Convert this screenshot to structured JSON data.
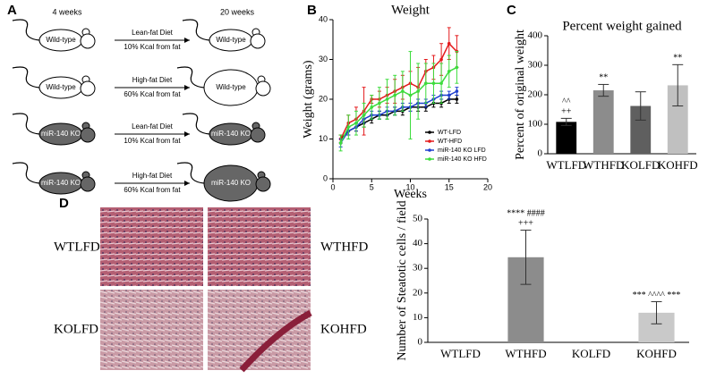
{
  "panels": {
    "a": "A",
    "b": "B",
    "c": "C",
    "d": "D"
  },
  "diagram": {
    "start_label": "4 weeks",
    "end_label": "20 weeks",
    "rows": [
      {
        "start": "Wild-type",
        "end": "Wild-type",
        "diet": "Lean-fat Diet",
        "kcal": "10% Kcal from fat"
      },
      {
        "start": "Wild-type",
        "end": "Wild-type",
        "diet": "High-fat Diet",
        "kcal": "60% Kcal from fat"
      },
      {
        "start": "miR-140 KO",
        "end": "miR-140 KO",
        "diet": "Lean-fat Diet",
        "kcal": "10% Kcal from fat"
      },
      {
        "start": "miR-140 KO",
        "end": "miR-140 KO",
        "diet": "High-fat Diet",
        "kcal": "60% Kcal from fat"
      }
    ]
  },
  "histology": {
    "labels": [
      "WTLFD",
      "WTHFD",
      "KOLFD",
      "KOHFD"
    ]
  },
  "chart_data": [
    {
      "type": "line",
      "title": "Weight",
      "x_label": "Weeks",
      "y_label": "Weight (grams)",
      "x": [
        1,
        2,
        3,
        4,
        5,
        6,
        7,
        8,
        9,
        10,
        11,
        12,
        13,
        14,
        15,
        16
      ],
      "xlim": [
        0,
        20
      ],
      "xticks": [
        0,
        5,
        10,
        15,
        20
      ],
      "ylim": [
        0,
        40
      ],
      "yticks": [
        0,
        10,
        20,
        30,
        40
      ],
      "legend": "lower right",
      "series": [
        {
          "name": "WT-LFD",
          "color": "#000000",
          "values": [
            10,
            12,
            13,
            14,
            15,
            16,
            16,
            17,
            17,
            18,
            18,
            18,
            19,
            19,
            20,
            20
          ],
          "errors": [
            1,
            1,
            1,
            1,
            1,
            1,
            1,
            1,
            1,
            1,
            1,
            1,
            1,
            1,
            1,
            1
          ]
        },
        {
          "name": "WT-HFD",
          "color": "#e41a1c",
          "values": [
            10,
            14,
            15,
            17,
            20,
            20,
            21,
            22,
            23,
            24,
            23,
            27,
            28,
            30,
            34,
            32
          ],
          "errors": [
            1,
            2,
            3,
            6,
            1,
            2,
            2,
            3,
            3,
            3,
            5,
            3,
            3,
            4,
            4,
            4
          ]
        },
        {
          "name": "miR-140 KO LFD",
          "color": "#1f3fcf",
          "values": [
            9,
            12,
            13,
            15,
            16,
            16,
            17,
            17,
            18,
            18,
            19,
            19,
            20,
            21,
            21,
            22
          ],
          "errors": [
            1,
            1,
            1,
            1,
            1,
            1,
            1,
            1,
            1,
            1,
            1,
            1,
            1,
            1,
            1,
            1
          ]
        },
        {
          "name": "miR-140 KO HFD",
          "color": "#3ddc3d",
          "values": [
            9,
            13,
            14,
            16,
            18,
            19,
            20,
            21,
            22,
            21,
            22,
            24,
            24,
            24,
            27,
            28
          ],
          "errors": [
            2,
            3,
            3,
            3,
            3,
            4,
            5,
            5,
            5,
            11,
            7,
            5,
            5,
            5,
            4,
            4
          ]
        }
      ]
    },
    {
      "type": "bar",
      "title": "Percent weight gained",
      "y_label": "Percent of original weight",
      "categories": [
        "WTLFD",
        "WTHFD",
        "KOLFD",
        "KOHFD"
      ],
      "values": [
        108,
        215,
        162,
        232
      ],
      "errors": [
        12,
        20,
        48,
        70
      ],
      "colors": [
        "#000000",
        "#8c8c8c",
        "#5f5f5f",
        "#c0c0c0"
      ],
      "annotations": [
        [
          "^^",
          "++"
        ],
        [
          "**"
        ],
        null,
        [
          "**"
        ]
      ],
      "ylim": [
        0,
        400
      ],
      "yticks": [
        0,
        100,
        200,
        300,
        400
      ]
    },
    {
      "type": "bar",
      "y_label": "Number of Steatotic cells / field",
      "categories": [
        "WTLFD",
        "WTHFD",
        "KOLFD",
        "KOHFD"
      ],
      "values": [
        0,
        34.5,
        0,
        12
      ],
      "errors": [
        0,
        11,
        0,
        4.5
      ],
      "colors": [
        "#000000",
        "#8c8c8c",
        "#5f5f5f",
        "#c9c9c9"
      ],
      "annotations": [
        null,
        [
          "**** ####",
          "+++"
        ],
        null,
        [
          "*** ^^^^ ***"
        ]
      ],
      "ylim": [
        0,
        50
      ],
      "yticks": [
        0,
        10,
        20,
        30,
        40,
        50
      ]
    }
  ]
}
